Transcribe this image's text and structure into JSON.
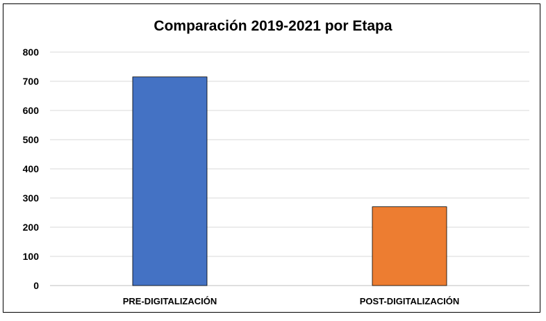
{
  "chart_data": {
    "type": "bar",
    "title": "Comparación 2019-2021 por Etapa",
    "categories": [
      "PRE-DIGITALIZACIÓN",
      "POST-DIGITALIZACIÓN"
    ],
    "values": [
      715,
      270
    ],
    "colors": [
      "#4472C4",
      "#ED7D31"
    ],
    "ylim": [
      0,
      800
    ],
    "yticks": [
      0,
      100,
      200,
      300,
      400,
      500,
      600,
      700,
      800
    ],
    "grid": true,
    "xlabel": "",
    "ylabel": ""
  }
}
